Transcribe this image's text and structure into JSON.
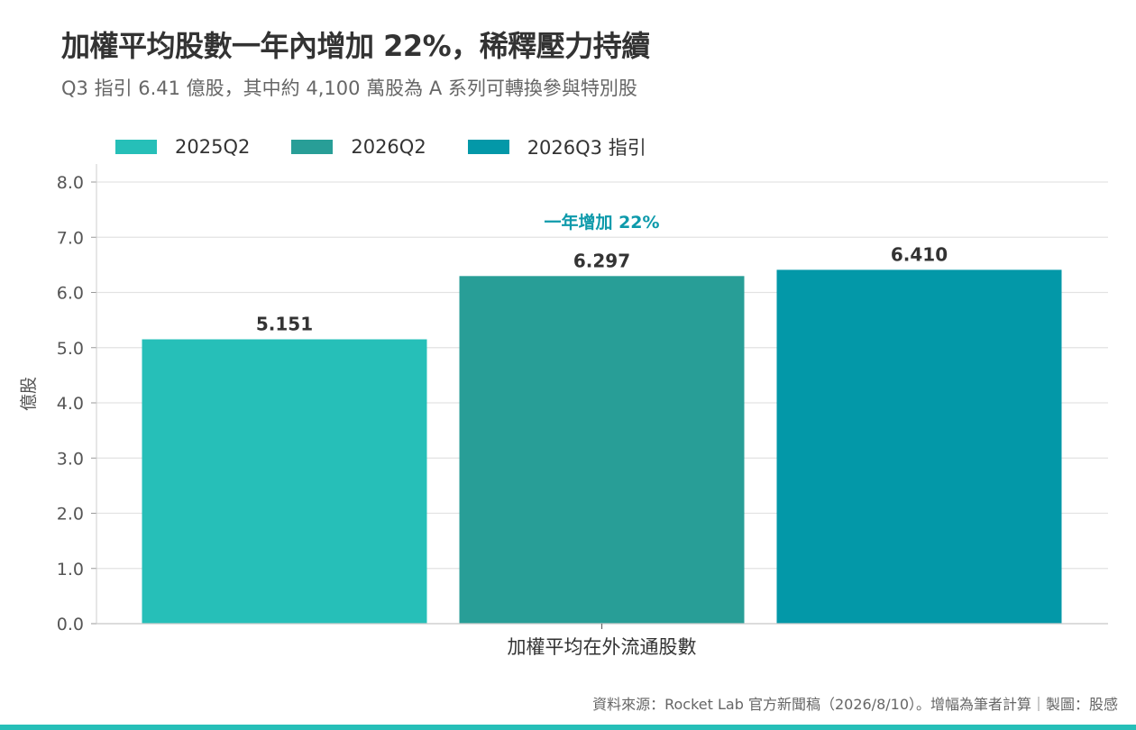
{
  "header": {
    "title": "加權平均股數一年內增加 22%，稀釋壓力持續",
    "subtitle": "Q3 指引 6.41 億股，其中約 4,100 萬股為 A 系列可轉換參與特別股"
  },
  "footer": {
    "source": "資料來源：Rocket Lab 官方新聞稿（2026/8/10）。增幅為筆者計算｜製圖：股感"
  },
  "colors": {
    "accent": "#26BFB8",
    "annotation": "#0E9AAB",
    "grid": "#E3E3E3",
    "axis_text": "#555555"
  },
  "chart_data": {
    "type": "bar",
    "categories": [
      "加權平均在外流通股數"
    ],
    "series": [
      {
        "name": "2025Q2",
        "values": [
          5.151
        ],
        "label": "5.151",
        "color": "#26BFB8"
      },
      {
        "name": "2026Q2",
        "values": [
          6.297
        ],
        "label": "6.297",
        "color": "#289E97"
      },
      {
        "name": "2026Q3 指引",
        "values": [
          6.41
        ],
        "label": "6.410",
        "color": "#0398A8"
      }
    ],
    "ylabel": "億股",
    "xlabel": "",
    "ylim": [
      0,
      8
    ],
    "yticks": [
      "0.0",
      "1.0",
      "2.0",
      "3.0",
      "4.0",
      "5.0",
      "6.0",
      "7.0",
      "8.0"
    ],
    "grid": true,
    "legend_position": "top-left",
    "annotation": "一年增加 22%"
  }
}
